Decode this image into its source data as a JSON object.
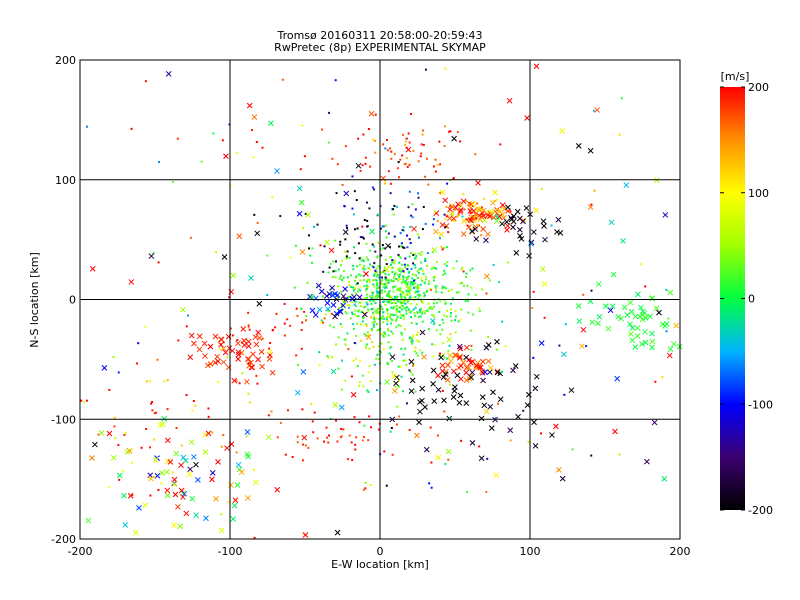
{
  "chart_data": {
    "type": "scatter",
    "title": "Tromsø 20160311 20:58:00-20:59:43",
    "subtitle": "RwPretec (8p) EXPERIMENTAL SKYMAP",
    "xlabel": "E-W location [km]",
    "ylabel": "N-S location [km]",
    "xlim": [
      -200,
      200
    ],
    "ylim": [
      -200,
      200
    ],
    "xticks": [
      -200,
      -100,
      0,
      100,
      200
    ],
    "yticks": [
      -200,
      -100,
      0,
      100,
      200
    ],
    "grid": true,
    "colorbar": {
      "label": "[m/s]",
      "min": -200,
      "max": 200,
      "ticks": [
        -200,
        -100,
        0,
        100,
        200
      ],
      "stops": [
        "#000000",
        "#3b0070",
        "#0000ff",
        "#00b4ff",
        "#00ff40",
        "#a0ff00",
        "#ffff00",
        "#ff9000",
        "#ff0000"
      ]
    },
    "markers": [
      "dot",
      "x"
    ],
    "clusters": [
      {
        "x": 10,
        "y": 5,
        "sx": 22,
        "sy": 18,
        "n": 700,
        "v": 20,
        "vs": 30,
        "m": "dot"
      },
      {
        "x": 5,
        "y": -45,
        "sx": 25,
        "sy": 22,
        "n": 120,
        "v": 40,
        "vs": 40,
        "m": "dot"
      },
      {
        "x": 18,
        "y": 120,
        "sx": 20,
        "sy": 15,
        "n": 70,
        "v": 180,
        "vs": 25,
        "m": "dot"
      },
      {
        "x": 62,
        "y": 72,
        "sx": 15,
        "sy": 8,
        "n": 70,
        "v": 160,
        "vs": 40,
        "m": "x"
      },
      {
        "x": 60,
        "y": 72,
        "sx": 10,
        "sy": 8,
        "n": 40,
        "v": 150,
        "vs": 40,
        "m": "dot"
      },
      {
        "x": 10,
        "y": 60,
        "sx": 20,
        "sy": 20,
        "n": 70,
        "v": -100,
        "vs": 60,
        "m": "dot"
      },
      {
        "x": -15,
        "y": 50,
        "sx": 20,
        "sy": 20,
        "n": 40,
        "v": -200,
        "vs": 10,
        "m": "dot"
      },
      {
        "x": -30,
        "y": 0,
        "sx": 10,
        "sy": 8,
        "n": 30,
        "v": -110,
        "vs": 30,
        "m": "x"
      },
      {
        "x": -95,
        "y": -45,
        "sx": 15,
        "sy": 12,
        "n": 50,
        "v": 190,
        "vs": 15,
        "m": "x"
      },
      {
        "x": -70,
        "y": -20,
        "sx": 20,
        "sy": 15,
        "n": 30,
        "v": 190,
        "vs": 15,
        "m": "dot"
      },
      {
        "x": 170,
        "y": -20,
        "sx": 18,
        "sy": 12,
        "n": 50,
        "v": 10,
        "vs": 10,
        "m": "x"
      },
      {
        "x": 55,
        "y": -55,
        "sx": 10,
        "sy": 8,
        "n": 40,
        "v": 180,
        "vs": 30,
        "m": "x"
      },
      {
        "x": 45,
        "y": -70,
        "sx": 15,
        "sy": 15,
        "n": 30,
        "v": -200,
        "vs": 10,
        "m": "x"
      },
      {
        "x": 80,
        "y": -80,
        "sx": 25,
        "sy": 30,
        "n": 30,
        "v": -190,
        "vs": 20,
        "m": "x"
      },
      {
        "x": 90,
        "y": 60,
        "sx": 15,
        "sy": 10,
        "n": 30,
        "v": -190,
        "vs": 20,
        "m": "x"
      },
      {
        "x": -140,
        "y": -150,
        "sx": 30,
        "sy": 30,
        "n": 80,
        "v": 80,
        "vs": 120,
        "m": "x"
      },
      {
        "x": -150,
        "y": -100,
        "sx": 30,
        "sy": 40,
        "n": 60,
        "v": 150,
        "vs": 80,
        "m": "dot"
      },
      {
        "x": -20,
        "y": -110,
        "sx": 30,
        "sy": 10,
        "n": 50,
        "v": 190,
        "vs": 15,
        "m": "dot"
      },
      {
        "x": 0,
        "y": 0,
        "sx": 110,
        "sy": 100,
        "n": 180,
        "v": 80,
        "vs": 160,
        "m": "dot"
      },
      {
        "x": 0,
        "y": 0,
        "sx": 110,
        "sy": 100,
        "n": 120,
        "v": 50,
        "vs": 180,
        "m": "x"
      }
    ]
  }
}
